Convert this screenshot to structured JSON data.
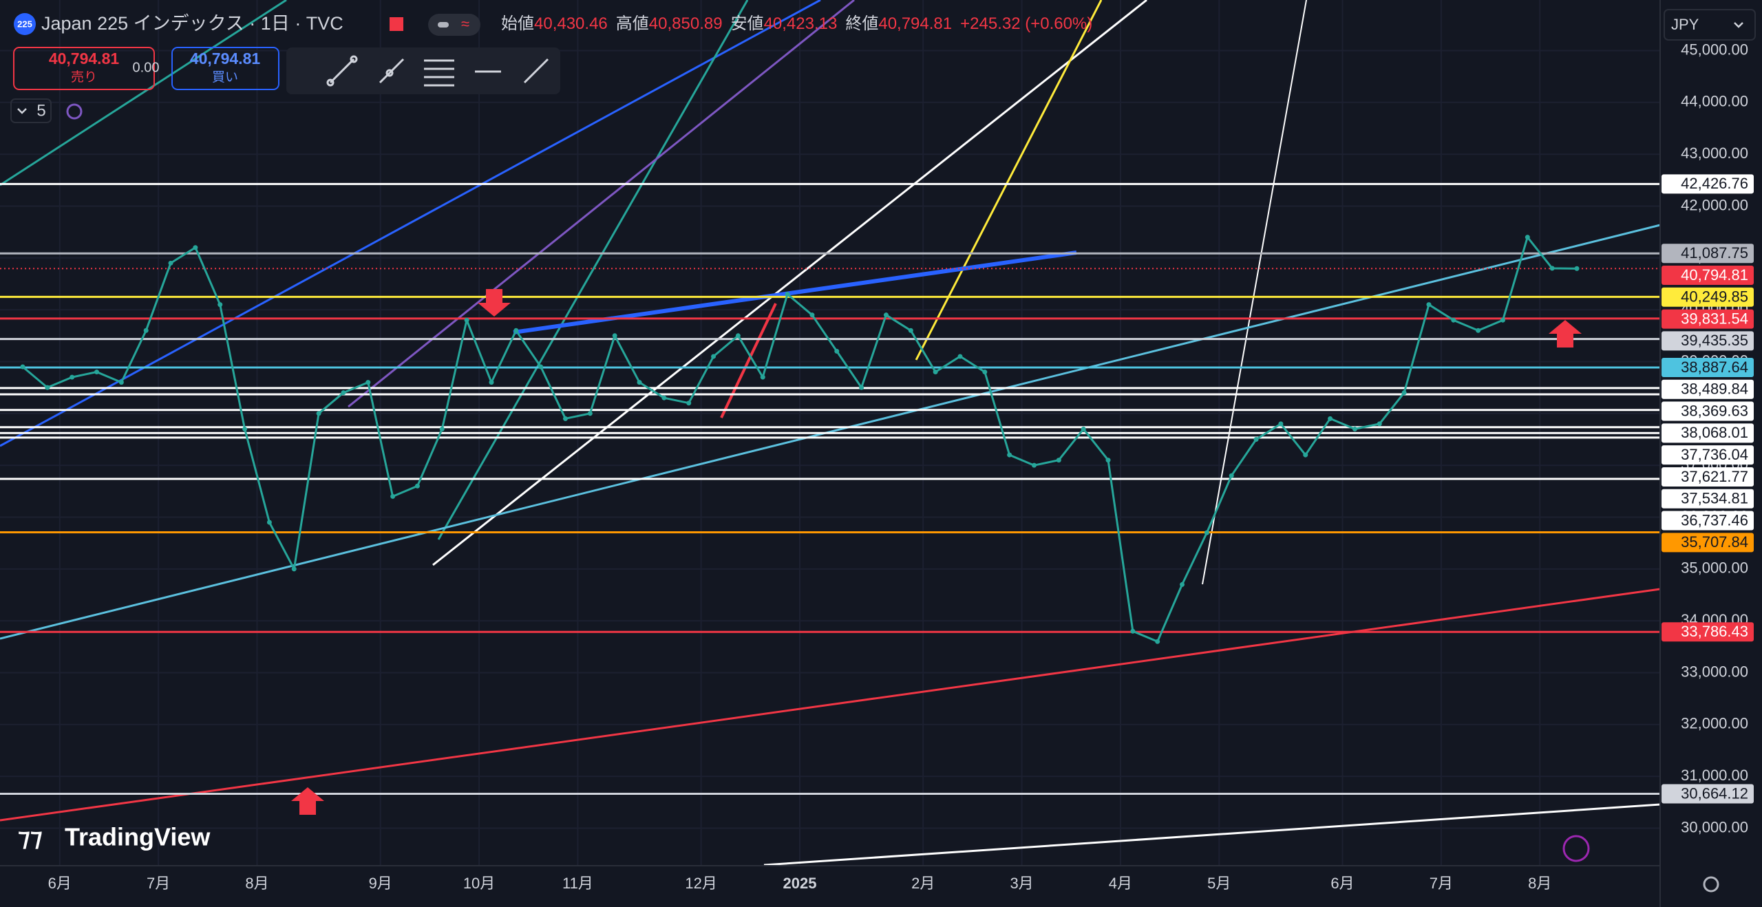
{
  "header": {
    "symbol_badge": "225",
    "title": "Japan 225 インデックス · 1日 · TVC",
    "ohlc": [
      {
        "label": "始値",
        "value": "40,430.46"
      },
      {
        "label": "高値",
        "value": "40,850.89"
      },
      {
        "label": "安値",
        "value": "40,423.13"
      },
      {
        "label": "終値",
        "value": "40,794.81"
      }
    ],
    "change": "+245.32 (+0.60%)"
  },
  "trade": {
    "sell_price": "40,794.81",
    "sell_label": "売り",
    "spread": "0.00",
    "buy_price": "40,794.81",
    "buy_label": "買い"
  },
  "indicators_count": "5",
  "currency": "JPY",
  "logo": "TradingView",
  "chart_data": {
    "type": "line",
    "categories": [
      null,
      null,
      "6月",
      null,
      null,
      null,
      "7月",
      null,
      null,
      null,
      "8月",
      null,
      null,
      null,
      null,
      "9月",
      null,
      null,
      null,
      "10月",
      null,
      null,
      null,
      "11月",
      null,
      null,
      null,
      null,
      "12月",
      null,
      null,
      null,
      "2025",
      null,
      null,
      null,
      null,
      "2月",
      null,
      null,
      null,
      "3月",
      null,
      null,
      null,
      "4月",
      null,
      null,
      null,
      "5月",
      null,
      null,
      null,
      null,
      "6月",
      null,
      null,
      null,
      "7月",
      null,
      null,
      null,
      "8月",
      null
    ],
    "values": [
      38900,
      38500,
      38700,
      38800,
      38600,
      39600,
      40900,
      41200,
      40100,
      37700,
      35900,
      35000,
      38000,
      38400,
      38600,
      36400,
      36600,
      37700,
      39800,
      38600,
      39600,
      38900,
      37900,
      38000,
      39500,
      38600,
      38300,
      38200,
      39100,
      39500,
      38700,
      40300,
      39900,
      39200,
      38500,
      39900,
      39600,
      38800,
      39100,
      38800,
      37200,
      37000,
      37100,
      37700,
      37100,
      33800,
      33600,
      34700,
      35700,
      36800,
      37500,
      37800,
      37200,
      37900,
      37700,
      37800,
      38400,
      40100,
      39800,
      39600,
      39800,
      41400,
      40800,
      40794.81
    ],
    "color": "#26a69a",
    "ylim": [
      29290,
      45975
    ],
    "yticks": [
      {
        "value": 30000,
        "label": "30,000.00"
      },
      {
        "value": 31000,
        "label": "31,000.00"
      },
      {
        "value": 32000,
        "label": "32,000.00"
      },
      {
        "value": 33000,
        "label": "33,000.00"
      },
      {
        "value": 34000,
        "label": "34,000.00"
      },
      {
        "value": 35000,
        "label": "35,000.00"
      },
      {
        "value": 36000,
        "label": "36,000.00"
      },
      {
        "value": 37000,
        "label": "37,000.00"
      },
      {
        "value": 38000,
        "label": "38,000.00"
      },
      {
        "value": 39000,
        "label": "39,000.00"
      },
      {
        "value": 40000,
        "label": "40,000.00"
      },
      {
        "value": 41000,
        "label": "41,000.00"
      },
      {
        "value": 42000,
        "label": "42,000.00"
      },
      {
        "value": 43000,
        "label": "43,000.00"
      },
      {
        "value": 44000,
        "label": "44,000.00"
      },
      {
        "value": 45000,
        "label": "45,000.00"
      }
    ],
    "grid": true,
    "levels": [
      {
        "value": 42426.76,
        "label": "42,426.76",
        "color": "#ffffff",
        "text_color": "#131722"
      },
      {
        "value": 41087.75,
        "label": "41,087.75",
        "color": "#b2b5be",
        "text_color": "#131722"
      },
      {
        "value": 40794.81,
        "label": "40,794.81",
        "color": "#f23645",
        "text_color": "#ffffff",
        "dotted": true
      },
      {
        "value": 40249.85,
        "label": "40,249.85",
        "color": "#ffeb3b",
        "text_color": "#131722"
      },
      {
        "value": 39831.54,
        "label": "39,831.54",
        "color": "#f23645",
        "text_color": "#ffffff"
      },
      {
        "value": 39435.35,
        "label": "39,435.35",
        "color": "#d1d4dc",
        "text_color": "#131722"
      },
      {
        "value": 38887.64,
        "label": "38,887.64",
        "color": "#4ec3e0",
        "text_color": "#131722"
      },
      {
        "value": 38489.84,
        "label": "38,489.84",
        "color": "#ffffff",
        "text_color": "#131722"
      },
      {
        "value": 38369.63,
        "label": "38,369.63",
        "color": "#ffffff",
        "text_color": "#131722"
      },
      {
        "value": 38068.01,
        "label": "38,068.01",
        "color": "#ffffff",
        "text_color": "#131722"
      },
      {
        "value": 37736.04,
        "label": "37,736.04",
        "color": "#ffffff",
        "text_color": "#131722"
      },
      {
        "value": 37621.77,
        "label": "37,621.77",
        "color": "#ffffff",
        "text_color": "#131722"
      },
      {
        "value": 37534.81,
        "label": "37,534.81",
        "color": "#ffffff",
        "text_color": "#131722"
      },
      {
        "value": 36737.46,
        "label": "36,737.46",
        "color": "#ffffff",
        "text_color": "#131722"
      },
      {
        "value": 35707.84,
        "label": "35,707.84",
        "color": "#ff9800",
        "text_color": "#131722"
      },
      {
        "value": 33786.43,
        "label": "33,786.43",
        "color": "#f23645",
        "text_color": "#ffffff"
      },
      {
        "value": 30664.12,
        "label": "30,664.12",
        "color": "#d1d4dc",
        "text_color": "#131722"
      }
    ]
  }
}
